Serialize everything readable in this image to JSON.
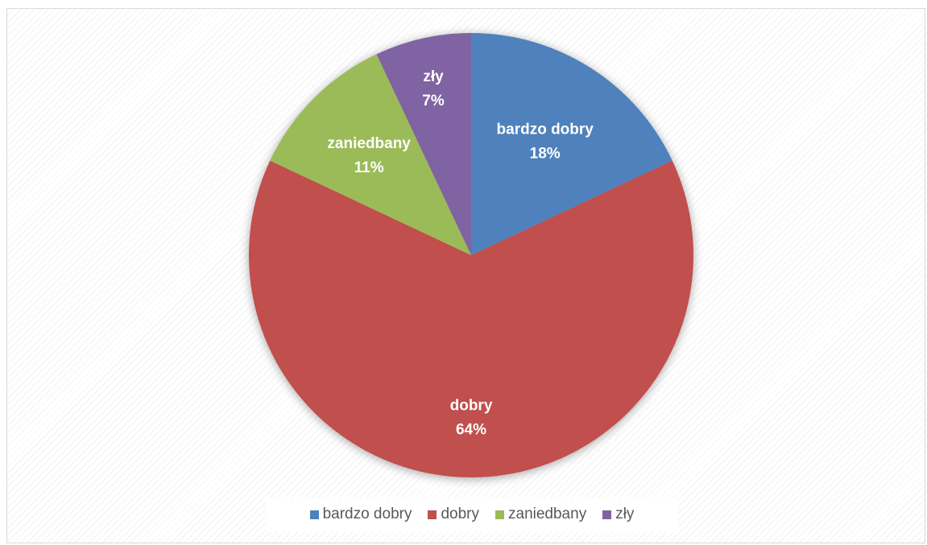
{
  "chart_data": {
    "type": "pie",
    "title": "",
    "categories": [
      "bardzo dobry",
      "dobry",
      "zaniedbany",
      "zły"
    ],
    "values": [
      18,
      64,
      11,
      7
    ],
    "labels": [
      {
        "name": "bardzo dobry",
        "percent": "18%"
      },
      {
        "name": "dobry",
        "percent": "64%"
      },
      {
        "name": "zaniedbany",
        "percent": "11%"
      },
      {
        "name": "zły",
        "percent": "7%"
      }
    ],
    "colors": [
      "#4f81bd",
      "#c0504d",
      "#9bbb59",
      "#8064a2"
    ],
    "legend_position": "bottom",
    "start_angle": "top, clockwise"
  }
}
